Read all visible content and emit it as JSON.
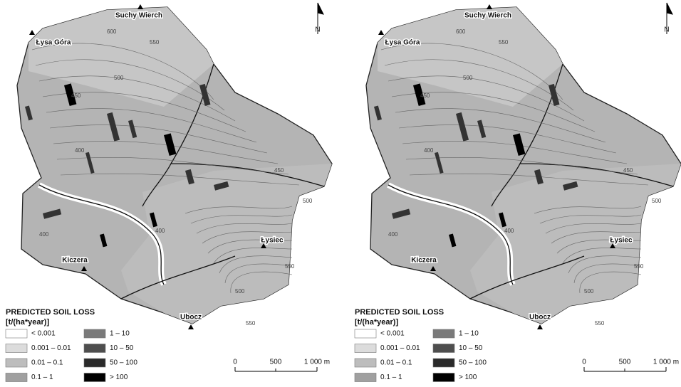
{
  "maps": [
    {
      "north": "N",
      "places": [
        "Suchy Wierch",
        "Łysa Góra",
        "Kiczera",
        "Łysiec",
        "Ubocz"
      ],
      "contour_labels": [
        "600",
        "550",
        "500",
        "450",
        "400",
        "450",
        "400",
        "500",
        "400",
        "550",
        "500",
        "550"
      ],
      "legend": {
        "title": "PREDICTED SOIL LOSS",
        "unit": "[t/(ha*year)]",
        "classes": [
          "< 0.001",
          "0.001 – 0.01",
          "0.01 – 0.1",
          "0.1 – 1",
          "1 – 10",
          "10 – 50",
          "50 – 100",
          "> 100"
        ],
        "colors": [
          "#ffffff",
          "#dcdcdc",
          "#bdbdbd",
          "#a0a0a0",
          "#7a7a7a",
          "#4e4e4e",
          "#2a2a2a",
          "#000000"
        ]
      },
      "scale_bar": [
        "0",
        "500",
        "1 000 m"
      ]
    },
    {
      "north": "N",
      "places": [
        "Suchy Wierch",
        "Łysa Góra",
        "Kiczera",
        "Łysiec",
        "Ubocz"
      ],
      "contour_labels": [
        "600",
        "550",
        "500",
        "450",
        "400",
        "450",
        "400",
        "500",
        "400",
        "550",
        "500",
        "550"
      ],
      "legend": {
        "title": "PREDICTED SOIL LOSS",
        "unit": "[t/(ha*year)]",
        "classes": [
          "< 0.001",
          "0.001 – 0.01",
          "0.01 – 0.1",
          "0.1 – 1",
          "1 – 10",
          "10 – 50",
          "50 – 100",
          "> 100"
        ],
        "colors": [
          "#ffffff",
          "#dcdcdc",
          "#bdbdbd",
          "#a0a0a0",
          "#7a7a7a",
          "#4e4e4e",
          "#2a2a2a",
          "#000000"
        ]
      },
      "scale_bar": [
        "0",
        "500",
        "1 000 m"
      ]
    }
  ]
}
